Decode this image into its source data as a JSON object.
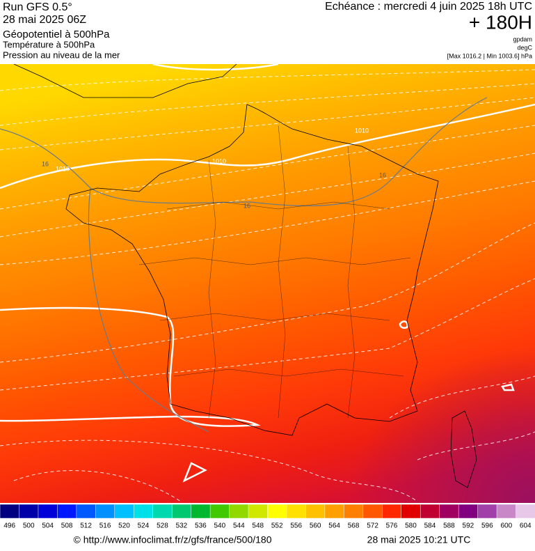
{
  "header": {
    "run": "Run GFS 0.5°",
    "date": "28 mai 2025 06Z",
    "line1": "Géopotentiel à 500hPa",
    "line2": "Température à 500hPa",
    "line3": "Pression au niveau de la mer",
    "echeance": "Echéance : mercredi 4 juin 2025 18h UTC",
    "offset": "+ 180H",
    "unit1": "gpdam",
    "unit2": "degC",
    "range": "[Max 1016.2 | Min 1003.6] hPa"
  },
  "map": {
    "contour_labels": [
      "1010",
      "1010",
      "1010",
      "16",
      "16",
      "16"
    ]
  },
  "colorbar": {
    "ticks": [
      496,
      500,
      504,
      508,
      512,
      516,
      520,
      524,
      528,
      532,
      536,
      540,
      544,
      548,
      552,
      556,
      560,
      564,
      568,
      572,
      576,
      580,
      584,
      588,
      592,
      596,
      600,
      604
    ],
    "colors": [
      "#000080",
      "#0000a8",
      "#0000d8",
      "#0018ff",
      "#0058ff",
      "#0090ff",
      "#00c0ff",
      "#00e0e8",
      "#00d8b0",
      "#00c870",
      "#00b830",
      "#40c800",
      "#90d800",
      "#d0e800",
      "#ffff00",
      "#ffe000",
      "#ffc000",
      "#ffa000",
      "#ff8000",
      "#ff5800",
      "#ff2800",
      "#e00000",
      "#c00030",
      "#a00060",
      "#800080",
      "#a040a8",
      "#c888c8",
      "#e8c8e8"
    ]
  },
  "footer": {
    "url": "© http://www.infoclimat.fr/z/gfs/france/500/180",
    "time": "28 mai 2025 10:21 UTC"
  }
}
